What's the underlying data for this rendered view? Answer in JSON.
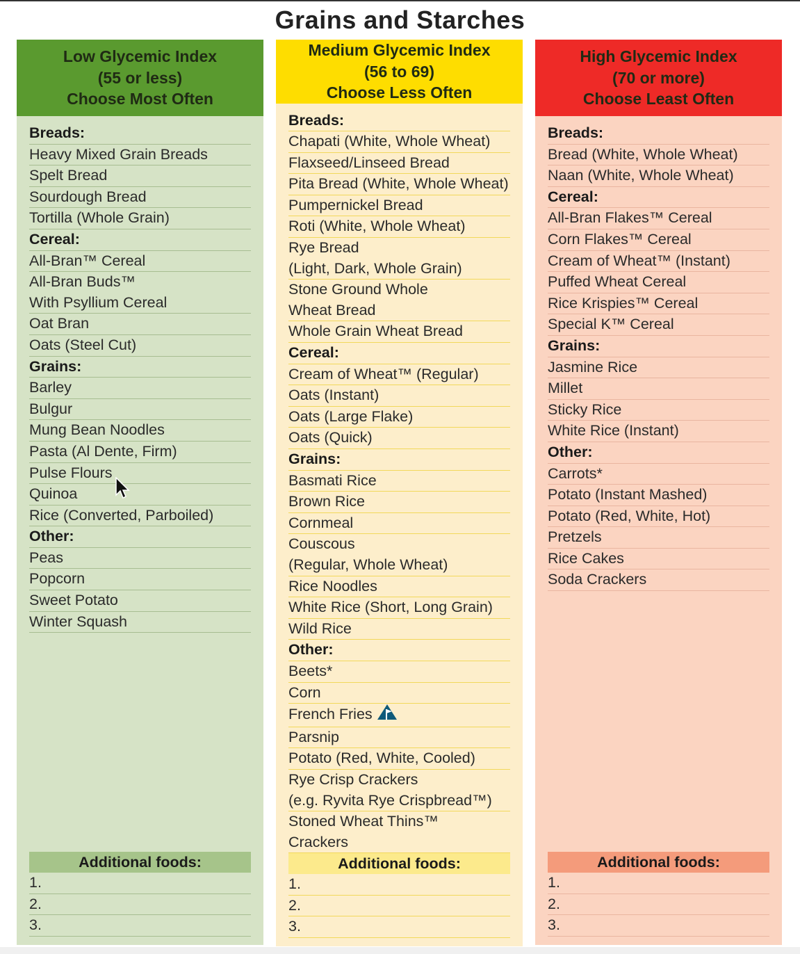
{
  "title": "Grains and Starches",
  "columns": [
    {
      "header": [
        "Low Glycemic Index",
        "(55 or less)",
        "Choose Most Often"
      ],
      "color": "#5a9a2f",
      "rows": [
        {
          "t": "Breads:",
          "cat": true
        },
        {
          "t": [
            "Heavy Mixed Grain Breads"
          ]
        },
        {
          "t": [
            "Spelt Bread"
          ]
        },
        {
          "t": [
            "Sourdough Bread"
          ]
        },
        {
          "t": [
            "Tortilla (Whole Grain)"
          ]
        },
        {
          "t": "Cereal:",
          "cat": true
        },
        {
          "t": [
            "All-Bran™ Cereal"
          ]
        },
        {
          "t": [
            "All-Bran Buds™",
            "With Psyllium Cereal"
          ]
        },
        {
          "t": [
            "Oat Bran"
          ]
        },
        {
          "t": [
            "Oats (Steel Cut)"
          ]
        },
        {
          "t": "Grains:",
          "cat": true
        },
        {
          "t": [
            "Barley"
          ]
        },
        {
          "t": [
            "Bulgur"
          ]
        },
        {
          "t": [
            "Mung Bean Noodles"
          ]
        },
        {
          "t": [
            "Pasta (Al Dente, Firm)"
          ]
        },
        {
          "t": [
            "Pulse Flours"
          ]
        },
        {
          "t": [
            "Quinoa"
          ]
        },
        {
          "t": [
            "Rice (Converted, Parboiled)"
          ]
        },
        {
          "t": "Other:",
          "cat": true
        },
        {
          "t": [
            "Peas"
          ]
        },
        {
          "t": [
            "Popcorn"
          ]
        },
        {
          "t": [
            "Sweet Potato"
          ]
        },
        {
          "t": [
            "Winter Squash"
          ]
        }
      ],
      "additional_label": "Additional foods:",
      "additional": [
        "1.",
        "2.",
        "3."
      ]
    },
    {
      "header": [
        "Medium Glycemic Index",
        "(56 to 69)",
        "Choose Less Often"
      ],
      "color": "#fedd00",
      "rows": [
        {
          "t": "Breads:",
          "cat": true
        },
        {
          "t": [
            "Chapati (White, Whole Wheat)"
          ]
        },
        {
          "t": [
            "Flaxseed/Linseed Bread"
          ]
        },
        {
          "t": [
            "Pita Bread (White, Whole Wheat)"
          ]
        },
        {
          "t": [
            "Pumpernickel Bread"
          ]
        },
        {
          "t": [
            "Roti (White, Whole Wheat)"
          ]
        },
        {
          "t": [
            "Rye Bread",
            "(Light, Dark, Whole Grain)"
          ]
        },
        {
          "t": [
            "Stone Ground Whole",
            "Wheat Bread"
          ]
        },
        {
          "t": [
            "Whole Grain Wheat Bread"
          ]
        },
        {
          "t": "Cereal:",
          "cat": true
        },
        {
          "t": [
            "Cream of Wheat™ (Regular)"
          ]
        },
        {
          "t": [
            "Oats (Instant)"
          ]
        },
        {
          "t": [
            "Oats (Large Flake)"
          ]
        },
        {
          "t": [
            "Oats (Quick)"
          ]
        },
        {
          "t": "Grains:",
          "cat": true
        },
        {
          "t": [
            "Basmati Rice"
          ]
        },
        {
          "t": [
            "Brown Rice"
          ]
        },
        {
          "t": [
            "Cornmeal"
          ]
        },
        {
          "t": [
            "Couscous",
            "(Regular, Whole Wheat)"
          ]
        },
        {
          "t": [
            "Rice Noodles"
          ]
        },
        {
          "t": [
            "White Rice (Short, Long Grain)"
          ]
        },
        {
          "t": [
            "Wild Rice"
          ]
        },
        {
          "t": "Other:",
          "cat": true
        },
        {
          "t": [
            "Beets*"
          ]
        },
        {
          "t": [
            "Corn"
          ]
        },
        {
          "t": [
            "French Fries"
          ],
          "icon": "warning-flag-icon"
        },
        {
          "t": [
            "Parsnip"
          ]
        },
        {
          "t": [
            "Potato (Red, White, Cooled)"
          ]
        },
        {
          "t": [
            "Rye Crisp Crackers",
            "(e.g. Ryvita Rye Crispbread™)"
          ]
        },
        {
          "t": [
            "Stoned Wheat Thins™",
            "Crackers"
          ]
        }
      ],
      "additional_label": "Additional foods:",
      "additional": [
        "1.",
        "2.",
        "3."
      ]
    },
    {
      "header": [
        "High Glycemic Index",
        "(70 or more)",
        "Choose Least Often"
      ],
      "color": "#ee2a27",
      "rows": [
        {
          "t": "Breads:",
          "cat": true
        },
        {
          "t": [
            "Bread (White, Whole Wheat)"
          ]
        },
        {
          "t": [
            "Naan (White, Whole Wheat)"
          ]
        },
        {
          "t": "Cereal:",
          "cat": true
        },
        {
          "t": [
            "All-Bran Flakes™ Cereal"
          ]
        },
        {
          "t": [
            "Corn Flakes™ Cereal"
          ]
        },
        {
          "t": [
            "Cream of Wheat™ (Instant)"
          ]
        },
        {
          "t": [
            "Puffed Wheat Cereal"
          ]
        },
        {
          "t": [
            "Rice Krispies™ Cereal"
          ]
        },
        {
          "t": [
            "Special K™ Cereal"
          ]
        },
        {
          "t": "Grains:",
          "cat": true
        },
        {
          "t": [
            "Jasmine Rice"
          ]
        },
        {
          "t": [
            "Millet"
          ]
        },
        {
          "t": [
            "Sticky Rice"
          ]
        },
        {
          "t": [
            "White Rice (Instant)"
          ]
        },
        {
          "t": "Other:",
          "cat": true
        },
        {
          "t": [
            "Carrots*"
          ]
        },
        {
          "t": [
            "Potato (Instant Mashed)"
          ]
        },
        {
          "t": [
            "Potato (Red, White, Hot)"
          ]
        },
        {
          "t": [
            "Pretzels"
          ]
        },
        {
          "t": [
            "Rice Cakes"
          ]
        },
        {
          "t": [
            "Soda Crackers"
          ]
        }
      ],
      "additional_label": "Additional foods:",
      "additional": [
        "1.",
        "2.",
        "3."
      ]
    }
  ]
}
